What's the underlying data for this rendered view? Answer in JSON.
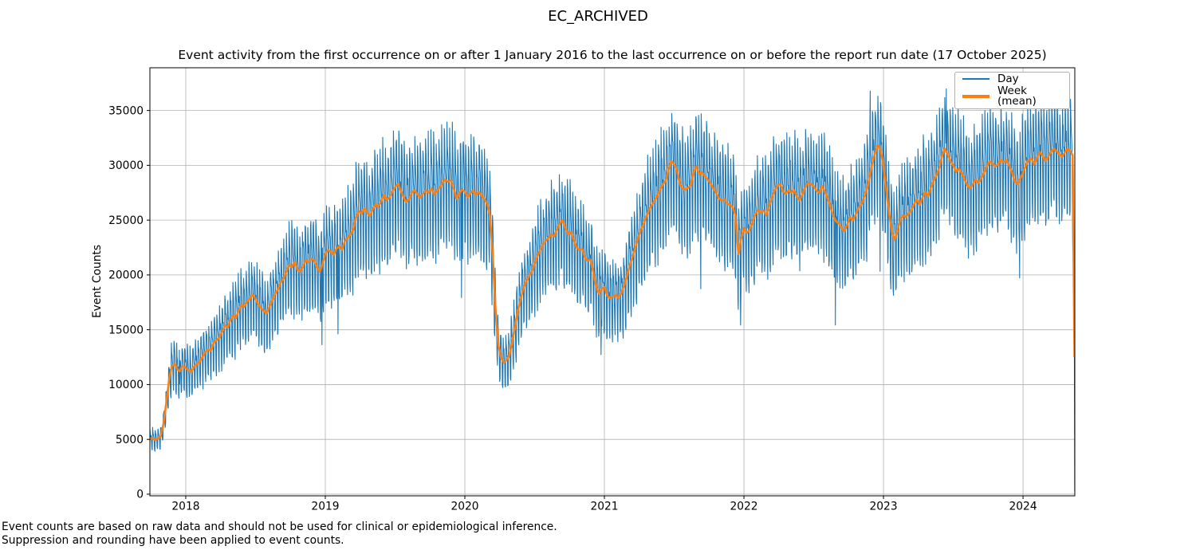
{
  "figure": {
    "title": "EC_ARCHIVED",
    "axes_title": "Event activity from the first occurrence on or after 1 January 2016 to the last occurrence on or before the report run date (17 October 2025)",
    "ylabel": "Event Counts",
    "footnotes": [
      "Event counts are based on raw data and should not be used for clinical or epidemiological inference.",
      "Suppression and rounding have been applied to event counts."
    ]
  },
  "colors": {
    "day_line": "#1f77b4",
    "week_line": "#ff7f0e",
    "grid": "#b0b0b0",
    "spine": "#000000",
    "background": "#ffffff"
  },
  "chart_data": {
    "type": "line",
    "title": "Event activity from the first occurrence on or after 1 January 2016 to the last occurrence on or before the report run date (17 October 2025)",
    "xlabel": "",
    "ylabel": "Event Counts",
    "grid": true,
    "legend_position": "upper right",
    "x_ticks": [
      2018,
      2019,
      2020,
      2021,
      2022,
      2023,
      2024
    ],
    "y_ticks": [
      0,
      5000,
      10000,
      15000,
      20000,
      25000,
      30000,
      35000
    ],
    "x_range": [
      2017.743,
      2024.371
    ],
    "y_range": [
      -150,
      38900
    ],
    "series": [
      {
        "name": "Day",
        "color": "#1f77b4",
        "width": 1.1
      },
      {
        "name": "Week (mean)",
        "color": "#ff7f0e",
        "width": 2.6
      }
    ],
    "noise_seed": 1234567,
    "day_pattern": [
      1.5,
      1.1,
      0.6,
      0.3,
      -0.1,
      -1.6,
      -1.8
    ],
    "day_jitter": 0.7,
    "day_amp_factor": 0.115,
    "day_amp_min": 280,
    "day_amp_max": 3100,
    "day_outliers": [
      [
        2017.956,
        10000
      ],
      [
        2018.16,
        11000
      ],
      [
        2018.975,
        13600
      ],
      [
        2019.09,
        14600
      ],
      [
        2019.975,
        17900
      ],
      [
        2020.975,
        12700
      ],
      [
        2021.69,
        18700
      ],
      [
        2021.975,
        15400
      ],
      [
        2022.655,
        15400
      ],
      [
        2022.905,
        36800
      ],
      [
        2022.975,
        20300
      ],
      [
        2023.065,
        20400
      ],
      [
        2023.45,
        37000
      ],
      [
        2023.975,
        19700
      ],
      [
        2024.371,
        300
      ]
    ],
    "weekly_mean": [
      [
        2017.743,
        5000
      ],
      [
        2017.762,
        5100
      ],
      [
        2017.781,
        4950
      ],
      [
        2017.8,
        5100
      ],
      [
        2017.82,
        5250
      ],
      [
        2017.84,
        6400
      ],
      [
        2017.86,
        8300
      ],
      [
        2017.88,
        10400
      ],
      [
        2017.9,
        11700
      ],
      [
        2017.92,
        11900
      ],
      [
        2017.94,
        11400
      ],
      [
        2017.956,
        11200
      ],
      [
        2017.975,
        11700
      ],
      [
        2018.0,
        11500
      ],
      [
        2018.02,
        11300
      ],
      [
        2018.04,
        11150
      ],
      [
        2018.06,
        11650
      ],
      [
        2018.08,
        11850
      ],
      [
        2018.1,
        12100
      ],
      [
        2018.12,
        12500
      ],
      [
        2018.14,
        13000
      ],
      [
        2018.16,
        13200
      ],
      [
        2018.18,
        13100
      ],
      [
        2018.2,
        13800
      ],
      [
        2018.22,
        14050
      ],
      [
        2018.24,
        14250
      ],
      [
        2018.26,
        14800
      ],
      [
        2018.28,
        15400
      ],
      [
        2018.3,
        15200
      ],
      [
        2018.32,
        15900
      ],
      [
        2018.34,
        16300
      ],
      [
        2018.36,
        16050
      ],
      [
        2018.38,
        16800
      ],
      [
        2018.4,
        17300
      ],
      [
        2018.42,
        17100
      ],
      [
        2018.44,
        17600
      ],
      [
        2018.46,
        17850
      ],
      [
        2018.48,
        18200
      ],
      [
        2018.5,
        17800
      ],
      [
        2018.52,
        17300
      ],
      [
        2018.54,
        17000
      ],
      [
        2018.56,
        16700
      ],
      [
        2018.58,
        16500
      ],
      [
        2018.6,
        17100
      ],
      [
        2018.62,
        17700
      ],
      [
        2018.64,
        18300
      ],
      [
        2018.66,
        18650
      ],
      [
        2018.68,
        19300
      ],
      [
        2018.7,
        19650
      ],
      [
        2018.72,
        20300
      ],
      [
        2018.74,
        20900
      ],
      [
        2018.76,
        20700
      ],
      [
        2018.78,
        21200
      ],
      [
        2018.8,
        20500
      ],
      [
        2018.82,
        20300
      ],
      [
        2018.84,
        20800
      ],
      [
        2018.86,
        21300
      ],
      [
        2018.88,
        21200
      ],
      [
        2018.9,
        21500
      ],
      [
        2018.92,
        21350
      ],
      [
        2018.94,
        20700
      ],
      [
        2018.96,
        20300
      ],
      [
        2018.98,
        21000
      ],
      [
        2019.0,
        21950
      ],
      [
        2019.02,
        22300
      ],
      [
        2019.04,
        22100
      ],
      [
        2019.06,
        21850
      ],
      [
        2019.08,
        22400
      ],
      [
        2019.1,
        22600
      ],
      [
        2019.12,
        22300
      ],
      [
        2019.14,
        23100
      ],
      [
        2019.16,
        23400
      ],
      [
        2019.18,
        23700
      ],
      [
        2019.2,
        24100
      ],
      [
        2019.22,
        25300
      ],
      [
        2019.24,
        25800
      ],
      [
        2019.26,
        25600
      ],
      [
        2019.28,
        26100
      ],
      [
        2019.3,
        25700
      ],
      [
        2019.32,
        25350
      ],
      [
        2019.34,
        26000
      ],
      [
        2019.36,
        26450
      ],
      [
        2019.38,
        26200
      ],
      [
        2019.4,
        26700
      ],
      [
        2019.42,
        27300
      ],
      [
        2019.44,
        26800
      ],
      [
        2019.46,
        27050
      ],
      [
        2019.48,
        27600
      ],
      [
        2019.5,
        28000
      ],
      [
        2019.52,
        28300
      ],
      [
        2019.54,
        27700
      ],
      [
        2019.56,
        27100
      ],
      [
        2019.58,
        26650
      ],
      [
        2019.6,
        26950
      ],
      [
        2019.62,
        27500
      ],
      [
        2019.64,
        27700
      ],
      [
        2019.66,
        27350
      ],
      [
        2019.68,
        27050
      ],
      [
        2019.7,
        27450
      ],
      [
        2019.72,
        27700
      ],
      [
        2019.74,
        27500
      ],
      [
        2019.76,
        27900
      ],
      [
        2019.78,
        27350
      ],
      [
        2019.8,
        27650
      ],
      [
        2019.82,
        28000
      ],
      [
        2019.84,
        28400
      ],
      [
        2019.86,
        28700
      ],
      [
        2019.88,
        28500
      ],
      [
        2019.9,
        28650
      ],
      [
        2019.92,
        27900
      ],
      [
        2019.94,
        26950
      ],
      [
        2019.96,
        27400
      ],
      [
        2019.98,
        27800
      ],
      [
        2020.0,
        27600
      ],
      [
        2020.02,
        27100
      ],
      [
        2020.04,
        27450
      ],
      [
        2020.06,
        27700
      ],
      [
        2020.08,
        27300
      ],
      [
        2020.1,
        27600
      ],
      [
        2020.12,
        27250
      ],
      [
        2020.14,
        26900
      ],
      [
        2020.16,
        26500
      ],
      [
        2020.18,
        25400
      ],
      [
        2020.2,
        21800
      ],
      [
        2020.22,
        16800
      ],
      [
        2020.24,
        13600
      ],
      [
        2020.26,
        12400
      ],
      [
        2020.28,
        12000
      ],
      [
        2020.3,
        12250
      ],
      [
        2020.32,
        12700
      ],
      [
        2020.34,
        13900
      ],
      [
        2020.36,
        15400
      ],
      [
        2020.38,
        16700
      ],
      [
        2020.4,
        17800
      ],
      [
        2020.42,
        18800
      ],
      [
        2020.44,
        19400
      ],
      [
        2020.46,
        19900
      ],
      [
        2020.48,
        20300
      ],
      [
        2020.5,
        21000
      ],
      [
        2020.52,
        21700
      ],
      [
        2020.54,
        22300
      ],
      [
        2020.56,
        22800
      ],
      [
        2020.58,
        23100
      ],
      [
        2020.6,
        23400
      ],
      [
        2020.62,
        23700
      ],
      [
        2020.64,
        23500
      ],
      [
        2020.66,
        24200
      ],
      [
        2020.68,
        24700
      ],
      [
        2020.7,
        25000
      ],
      [
        2020.72,
        24300
      ],
      [
        2020.74,
        23700
      ],
      [
        2020.76,
        23900
      ],
      [
        2020.78,
        23200
      ],
      [
        2020.8,
        22500
      ],
      [
        2020.82,
        22300
      ],
      [
        2020.84,
        22400
      ],
      [
        2020.86,
        21600
      ],
      [
        2020.88,
        21300
      ],
      [
        2020.9,
        21400
      ],
      [
        2020.92,
        20300
      ],
      [
        2020.94,
        19000
      ],
      [
        2020.96,
        18300
      ],
      [
        2020.98,
        18700
      ],
      [
        2021.0,
        18900
      ],
      [
        2021.02,
        18100
      ],
      [
        2021.04,
        17900
      ],
      [
        2021.06,
        18000
      ],
      [
        2021.08,
        18200
      ],
      [
        2021.1,
        17900
      ],
      [
        2021.12,
        18300
      ],
      [
        2021.14,
        19000
      ],
      [
        2021.16,
        19800
      ],
      [
        2021.18,
        20800
      ],
      [
        2021.2,
        21600
      ],
      [
        2021.22,
        22400
      ],
      [
        2021.24,
        23300
      ],
      [
        2021.26,
        24100
      ],
      [
        2021.28,
        24600
      ],
      [
        2021.3,
        25300
      ],
      [
        2021.32,
        25900
      ],
      [
        2021.34,
        26400
      ],
      [
        2021.36,
        26800
      ],
      [
        2021.38,
        27300
      ],
      [
        2021.4,
        27800
      ],
      [
        2021.42,
        28300
      ],
      [
        2021.44,
        28600
      ],
      [
        2021.46,
        29600
      ],
      [
        2021.48,
        30400
      ],
      [
        2021.5,
        30100
      ],
      [
        2021.52,
        29600
      ],
      [
        2021.54,
        28300
      ],
      [
        2021.56,
        27900
      ],
      [
        2021.58,
        27800
      ],
      [
        2021.6,
        27950
      ],
      [
        2021.62,
        28200
      ],
      [
        2021.64,
        29400
      ],
      [
        2021.66,
        29900
      ],
      [
        2021.68,
        29200
      ],
      [
        2021.7,
        29350
      ],
      [
        2021.72,
        29000
      ],
      [
        2021.74,
        28700
      ],
      [
        2021.76,
        28400
      ],
      [
        2021.78,
        27900
      ],
      [
        2021.8,
        27500
      ],
      [
        2021.82,
        27000
      ],
      [
        2021.84,
        26800
      ],
      [
        2021.86,
        26900
      ],
      [
        2021.88,
        26500
      ],
      [
        2021.9,
        26400
      ],
      [
        2021.92,
        26200
      ],
      [
        2021.94,
        25400
      ],
      [
        2021.96,
        21900
      ],
      [
        2021.98,
        23300
      ],
      [
        2022.0,
        24300
      ],
      [
        2022.02,
        23800
      ],
      [
        2022.04,
        24100
      ],
      [
        2022.06,
        24700
      ],
      [
        2022.08,
        25500
      ],
      [
        2022.1,
        25900
      ],
      [
        2022.12,
        25700
      ],
      [
        2022.14,
        25900
      ],
      [
        2022.16,
        25450
      ],
      [
        2022.18,
        26200
      ],
      [
        2022.2,
        27100
      ],
      [
        2022.22,
        27700
      ],
      [
        2022.24,
        28100
      ],
      [
        2022.26,
        28300
      ],
      [
        2022.28,
        27600
      ],
      [
        2022.3,
        27400
      ],
      [
        2022.32,
        27700
      ],
      [
        2022.34,
        27500
      ],
      [
        2022.36,
        27700
      ],
      [
        2022.38,
        27100
      ],
      [
        2022.4,
        26800
      ],
      [
        2022.42,
        27400
      ],
      [
        2022.44,
        28000
      ],
      [
        2022.46,
        28400
      ],
      [
        2022.48,
        28300
      ],
      [
        2022.5,
        28100
      ],
      [
        2022.52,
        27700
      ],
      [
        2022.54,
        27500
      ],
      [
        2022.56,
        28100
      ],
      [
        2022.58,
        27600
      ],
      [
        2022.6,
        27000
      ],
      [
        2022.62,
        26200
      ],
      [
        2022.64,
        25400
      ],
      [
        2022.66,
        24900
      ],
      [
        2022.68,
        24700
      ],
      [
        2022.7,
        24300
      ],
      [
        2022.72,
        24000
      ],
      [
        2022.74,
        24600
      ],
      [
        2022.76,
        25300
      ],
      [
        2022.78,
        25000
      ],
      [
        2022.8,
        25500
      ],
      [
        2022.82,
        26100
      ],
      [
        2022.84,
        26400
      ],
      [
        2022.86,
        27100
      ],
      [
        2022.88,
        27800
      ],
      [
        2022.9,
        28900
      ],
      [
        2022.92,
        30200
      ],
      [
        2022.94,
        31200
      ],
      [
        2022.96,
        31800
      ],
      [
        2022.98,
        31400
      ],
      [
        2023.0,
        29800
      ],
      [
        2023.02,
        27800
      ],
      [
        2023.04,
        25600
      ],
      [
        2023.06,
        23900
      ],
      [
        2023.08,
        23200
      ],
      [
        2023.1,
        24100
      ],
      [
        2023.12,
        25000
      ],
      [
        2023.14,
        25400
      ],
      [
        2023.16,
        25300
      ],
      [
        2023.18,
        25600
      ],
      [
        2023.2,
        25900
      ],
      [
        2023.22,
        26500
      ],
      [
        2023.24,
        26900
      ],
      [
        2023.26,
        26400
      ],
      [
        2023.28,
        27100
      ],
      [
        2023.3,
        27600
      ],
      [
        2023.32,
        27200
      ],
      [
        2023.34,
        28000
      ],
      [
        2023.36,
        28600
      ],
      [
        2023.38,
        29100
      ],
      [
        2023.4,
        29800
      ],
      [
        2023.42,
        30900
      ],
      [
        2023.44,
        31500
      ],
      [
        2023.46,
        31000
      ],
      [
        2023.48,
        30400
      ],
      [
        2023.5,
        30000
      ],
      [
        2023.52,
        29400
      ],
      [
        2023.54,
        29700
      ],
      [
        2023.56,
        29300
      ],
      [
        2023.58,
        28700
      ],
      [
        2023.6,
        28200
      ],
      [
        2023.62,
        27900
      ],
      [
        2023.64,
        28300
      ],
      [
        2023.66,
        28700
      ],
      [
        2023.68,
        28400
      ],
      [
        2023.7,
        28800
      ],
      [
        2023.72,
        29300
      ],
      [
        2023.74,
        29900
      ],
      [
        2023.76,
        30400
      ],
      [
        2023.78,
        30200
      ],
      [
        2023.8,
        29900
      ],
      [
        2023.82,
        30100
      ],
      [
        2023.84,
        30500
      ],
      [
        2023.86,
        30300
      ],
      [
        2023.88,
        30500
      ],
      [
        2023.9,
        30000
      ],
      [
        2023.92,
        29400
      ],
      [
        2023.94,
        28500
      ],
      [
        2023.96,
        28300
      ],
      [
        2023.98,
        28800
      ],
      [
        2024.0,
        29300
      ],
      [
        2024.02,
        30000
      ],
      [
        2024.04,
        30500
      ],
      [
        2024.06,
        30600
      ],
      [
        2024.08,
        30100
      ],
      [
        2024.1,
        30700
      ],
      [
        2024.12,
        31200
      ],
      [
        2024.14,
        30900
      ],
      [
        2024.16,
        30400
      ],
      [
        2024.18,
        30800
      ],
      [
        2024.2,
        31200
      ],
      [
        2024.22,
        31500
      ],
      [
        2024.24,
        31300
      ],
      [
        2024.26,
        31000
      ],
      [
        2024.28,
        30800
      ],
      [
        2024.3,
        31200
      ],
      [
        2024.32,
        31500
      ],
      [
        2024.34,
        31300
      ],
      [
        2024.355,
        30900
      ],
      [
        2024.369,
        12500
      ]
    ]
  }
}
